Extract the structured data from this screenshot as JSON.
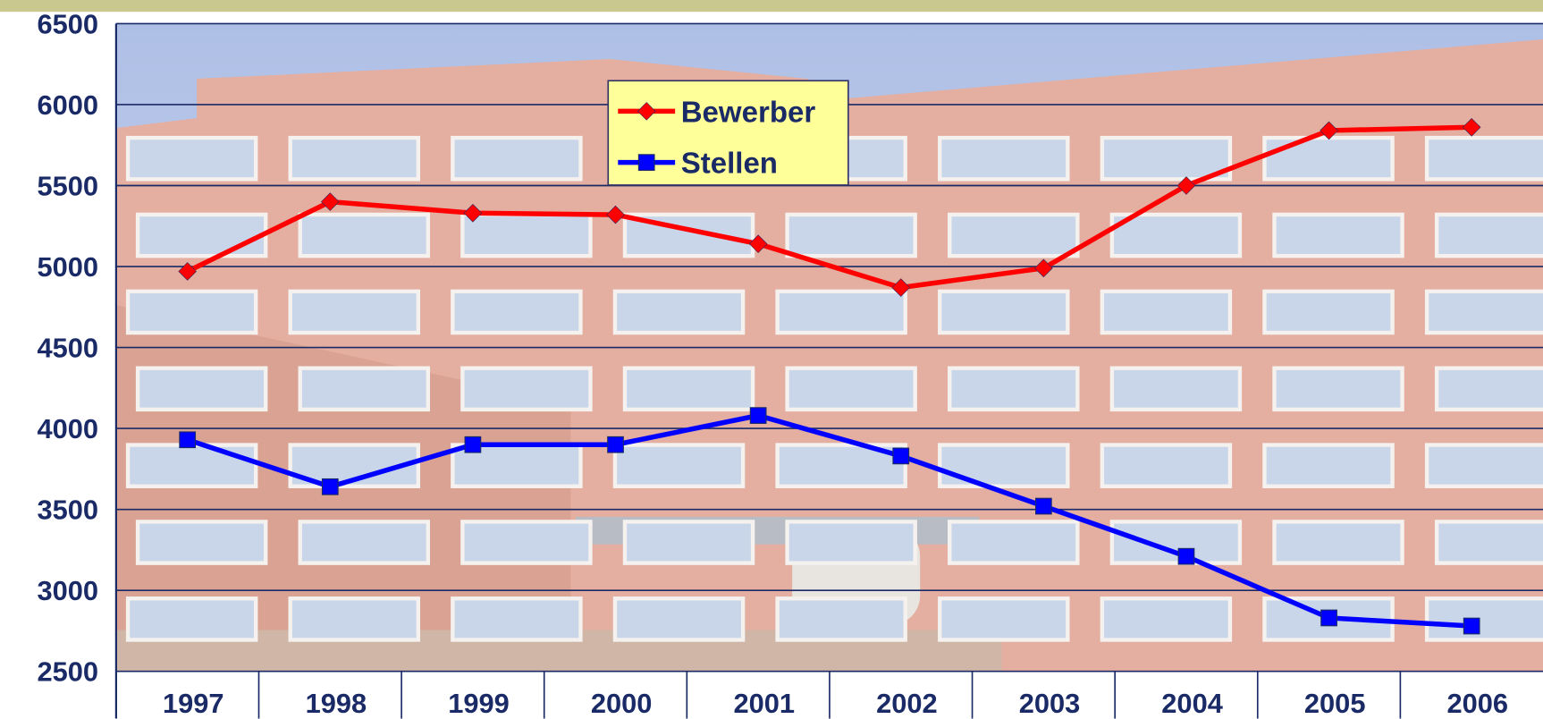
{
  "chart_data": {
    "type": "line",
    "categories": [
      "1997",
      "1998",
      "1999",
      "2000",
      "2001",
      "2002",
      "2003",
      "2004",
      "2005",
      "2006"
    ],
    "series": [
      {
        "name": "Bewerber",
        "color": "#ff0000",
        "marker": "diamond",
        "values": [
          4970,
          5400,
          5330,
          5320,
          5140,
          4870,
          4990,
          5500,
          5840,
          5860
        ]
      },
      {
        "name": "Stellen",
        "color": "#0000ff",
        "marker": "square",
        "values": [
          3930,
          3640,
          3900,
          3900,
          4080,
          3830,
          3520,
          3210,
          2830,
          2780
        ]
      }
    ],
    "ylim": [
      2500,
      6500
    ],
    "yticks": [
      2500,
      3000,
      3500,
      4000,
      4500,
      5000,
      5500,
      6000,
      6500
    ],
    "grid": true
  }
}
